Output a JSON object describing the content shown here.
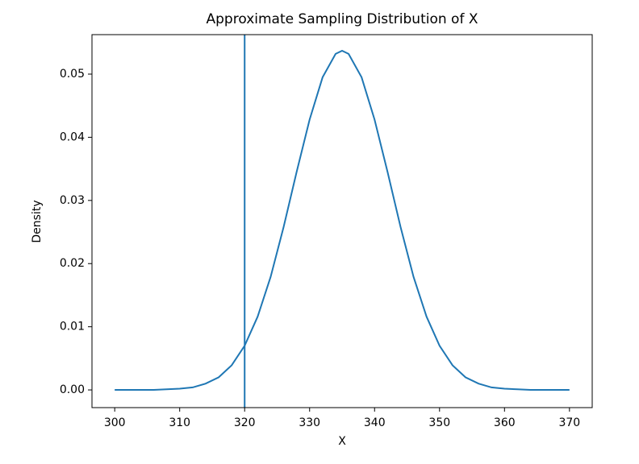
{
  "chart_data": {
    "type": "line",
    "title": "Approximate Sampling Distribution of X",
    "xlabel": "X",
    "ylabel": "Density",
    "x": [
      300,
      302,
      304,
      306,
      308,
      310,
      312,
      314,
      316,
      318,
      320,
      322,
      324,
      326,
      328,
      330,
      332,
      334,
      335,
      336,
      338,
      340,
      342,
      344,
      346,
      348,
      350,
      352,
      354,
      356,
      358,
      360,
      362,
      364,
      366,
      368,
      370
    ],
    "series": [
      {
        "name": "density",
        "color": "#1f77b4",
        "values": [
          0.0,
          0.0,
          0.0,
          0.0,
          0.0001,
          0.0002,
          0.0004,
          0.001,
          0.002,
          0.0039,
          0.007,
          0.0116,
          0.0179,
          0.0258,
          0.0345,
          0.0428,
          0.0495,
          0.0532,
          0.0537,
          0.0532,
          0.0495,
          0.0428,
          0.0345,
          0.0258,
          0.0179,
          0.0116,
          0.007,
          0.0039,
          0.002,
          0.001,
          0.0004,
          0.0002,
          0.0001,
          0.0,
          0.0,
          0.0,
          0.0
        ]
      }
    ],
    "vline": 320,
    "vline_color": "#1f77b4",
    "xlim": [
      296.5,
      373.5
    ],
    "ylim": [
      -0.0028,
      0.05625
    ],
    "xticks": [
      300,
      310,
      320,
      330,
      340,
      350,
      360,
      370
    ],
    "yticks": [
      {
        "value": 0,
        "label": "0.00"
      },
      {
        "value": 0.01,
        "label": "0.01"
      },
      {
        "value": 0.02,
        "label": "0.02"
      },
      {
        "value": 0.03,
        "label": "0.03"
      },
      {
        "value": 0.04,
        "label": "0.04"
      },
      {
        "value": 0.05,
        "label": "0.05"
      }
    ]
  }
}
